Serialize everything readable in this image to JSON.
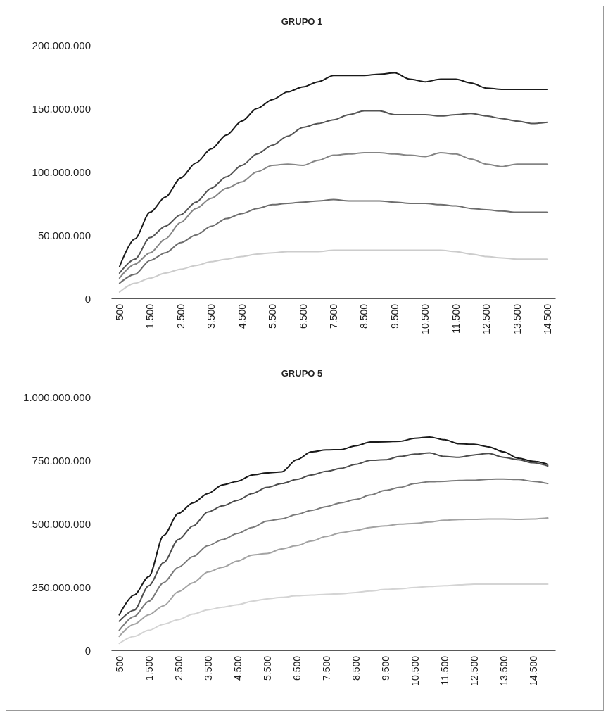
{
  "chart_data": [
    {
      "type": "line",
      "title": "GRUPO 1",
      "categories": [
        "500",
        null,
        "1.500",
        null,
        "2.500",
        null,
        "3.500",
        null,
        "4.500",
        null,
        "5.500",
        null,
        "6.500",
        null,
        "7.500",
        null,
        "8.500",
        null,
        "9.500",
        null,
        "10.500",
        null,
        "11.500",
        null,
        "12.500",
        null,
        "13.500",
        null,
        "14.500"
      ],
      "series": [
        {
          "color": "#1a1a1a",
          "values": [
            25000000,
            47000000,
            68000000,
            80000000,
            95000000,
            107000000,
            118000000,
            129000000,
            140000000,
            150000000,
            157000000,
            163000000,
            167000000,
            171000000,
            176000000,
            176000000,
            176000000,
            177000000,
            178000000,
            173000000,
            171000000,
            173000000,
            173000000,
            170000000,
            166000000,
            165000000,
            165000000,
            165000000,
            165000000
          ]
        },
        {
          "color": "#555555",
          "values": [
            20000000,
            31000000,
            48000000,
            57000000,
            66000000,
            76000000,
            87000000,
            96000000,
            105000000,
            114000000,
            121000000,
            128000000,
            135000000,
            138000000,
            141000000,
            145000000,
            148000000,
            148000000,
            145000000,
            145000000,
            145000000,
            144000000,
            145000000,
            146000000,
            144000000,
            142000000,
            140000000,
            138000000,
            139000000
          ]
        },
        {
          "color": "#858585",
          "values": [
            16000000,
            27000000,
            36000000,
            47000000,
            60000000,
            71000000,
            79000000,
            87000000,
            92000000,
            100000000,
            105000000,
            106000000,
            105000000,
            109000000,
            113000000,
            114000000,
            115000000,
            115000000,
            114000000,
            113000000,
            112000000,
            115000000,
            114000000,
            110000000,
            106000000,
            104000000,
            106000000,
            106000000,
            106000000
          ]
        },
        {
          "color": "#6e6e6e",
          "values": [
            12000000,
            19000000,
            30000000,
            36000000,
            44000000,
            50000000,
            57000000,
            63000000,
            67000000,
            71000000,
            74000000,
            75000000,
            76000000,
            77000000,
            78000000,
            77000000,
            77000000,
            77000000,
            76000000,
            75000000,
            75000000,
            74000000,
            73000000,
            71000000,
            70000000,
            69000000,
            68000000,
            68000000,
            68000000
          ]
        },
        {
          "color": "#cccccc",
          "values": [
            5000000,
            12000000,
            16000000,
            20000000,
            23000000,
            26000000,
            29000000,
            31000000,
            33000000,
            35000000,
            36000000,
            37000000,
            37000000,
            37000000,
            38000000,
            38000000,
            38000000,
            38000000,
            38000000,
            38000000,
            38000000,
            38000000,
            37000000,
            35000000,
            33000000,
            32000000,
            31000000,
            31000000,
            31000000
          ]
        }
      ],
      "ylim": [
        0,
        200000000
      ],
      "yticks": [
        0,
        {
          "value": 50000000,
          "label": "50.000.000"
        },
        {
          "value": 100000000,
          "label": "100.000.000"
        },
        {
          "value": 150000000,
          "label": "150.000.000"
        },
        {
          "value": 200000000,
          "label": "200.000.000"
        }
      ],
      "grid": false,
      "marker": "none",
      "line_style": "solid"
    },
    {
      "type": "line",
      "title": "GRUPO 5",
      "categories": [
        "500",
        null,
        "1.500",
        null,
        "2.500",
        null,
        "3.500",
        null,
        "4.500",
        null,
        "5.500",
        null,
        "6.500",
        null,
        "7.500",
        null,
        "8.500",
        null,
        "9.500",
        null,
        "10.500",
        null,
        "11.500",
        null,
        "12.500",
        null,
        "13.500",
        null,
        "14.500",
        null
      ],
      "series": [
        {
          "color": "#1a1a1a",
          "values": [
            140000000,
            218000000,
            291000000,
            453000000,
            540000000,
            582000000,
            619000000,
            653000000,
            667000000,
            692000000,
            700000000,
            704000000,
            752000000,
            783000000,
            791000000,
            792000000,
            807000000,
            822000000,
            823000000,
            825000000,
            837000000,
            842000000,
            831000000,
            815000000,
            813000000,
            803000000,
            783000000,
            758000000,
            746000000,
            734000000
          ]
        },
        {
          "color": "#4d4d4d",
          "values": [
            115000000,
            158000000,
            255000000,
            346000000,
            437000000,
            491000000,
            546000000,
            570000000,
            592000000,
            619000000,
            643000000,
            658000000,
            674000000,
            692000000,
            706000000,
            718000000,
            734000000,
            750000000,
            752000000,
            765000000,
            774000000,
            779000000,
            765000000,
            762000000,
            771000000,
            777000000,
            762000000,
            752000000,
            740000000,
            728000000
          ]
        },
        {
          "color": "#7a7a7a",
          "values": [
            79000000,
            133000000,
            194000000,
            267000000,
            328000000,
            370000000,
            413000000,
            437000000,
            461000000,
            485000000,
            510000000,
            519000000,
            536000000,
            552000000,
            567000000,
            582000000,
            595000000,
            613000000,
            631000000,
            643000000,
            658000000,
            665000000,
            667000000,
            670000000,
            671000000,
            675000000,
            676000000,
            674000000,
            667000000,
            658000000
          ]
        },
        {
          "color": "#a3a3a3",
          "values": [
            55000000,
            103000000,
            140000000,
            176000000,
            231000000,
            267000000,
            309000000,
            328000000,
            352000000,
            376000000,
            382000000,
            400000000,
            413000000,
            431000000,
            449000000,
            464000000,
            473000000,
            485000000,
            491000000,
            498000000,
            501000000,
            506000000,
            513000000,
            516000000,
            517000000,
            518000000,
            518000000,
            517000000,
            518000000,
            522000000
          ]
        },
        {
          "color": "#d4d4d4",
          "values": [
            27000000,
            55000000,
            79000000,
            103000000,
            121000000,
            143000000,
            160000000,
            170000000,
            180000000,
            194000000,
            203000000,
            209000000,
            215000000,
            218000000,
            221000000,
            223000000,
            228000000,
            234000000,
            240000000,
            243000000,
            248000000,
            252000000,
            255000000,
            258000000,
            261000000,
            261000000,
            261000000,
            261000000,
            261000000,
            261000000
          ]
        }
      ],
      "ylim": [
        0,
        1000000000
      ],
      "yticks": [
        0,
        {
          "value": 250000000,
          "label": "250.000.000"
        },
        {
          "value": 500000000,
          "label": "500.000.000"
        },
        {
          "value": 750000000,
          "label": "750.000.000"
        },
        {
          "value": 1000000000,
          "label": "1.000.000.000"
        }
      ],
      "grid": false,
      "marker": "none",
      "line_style": "solid"
    }
  ]
}
